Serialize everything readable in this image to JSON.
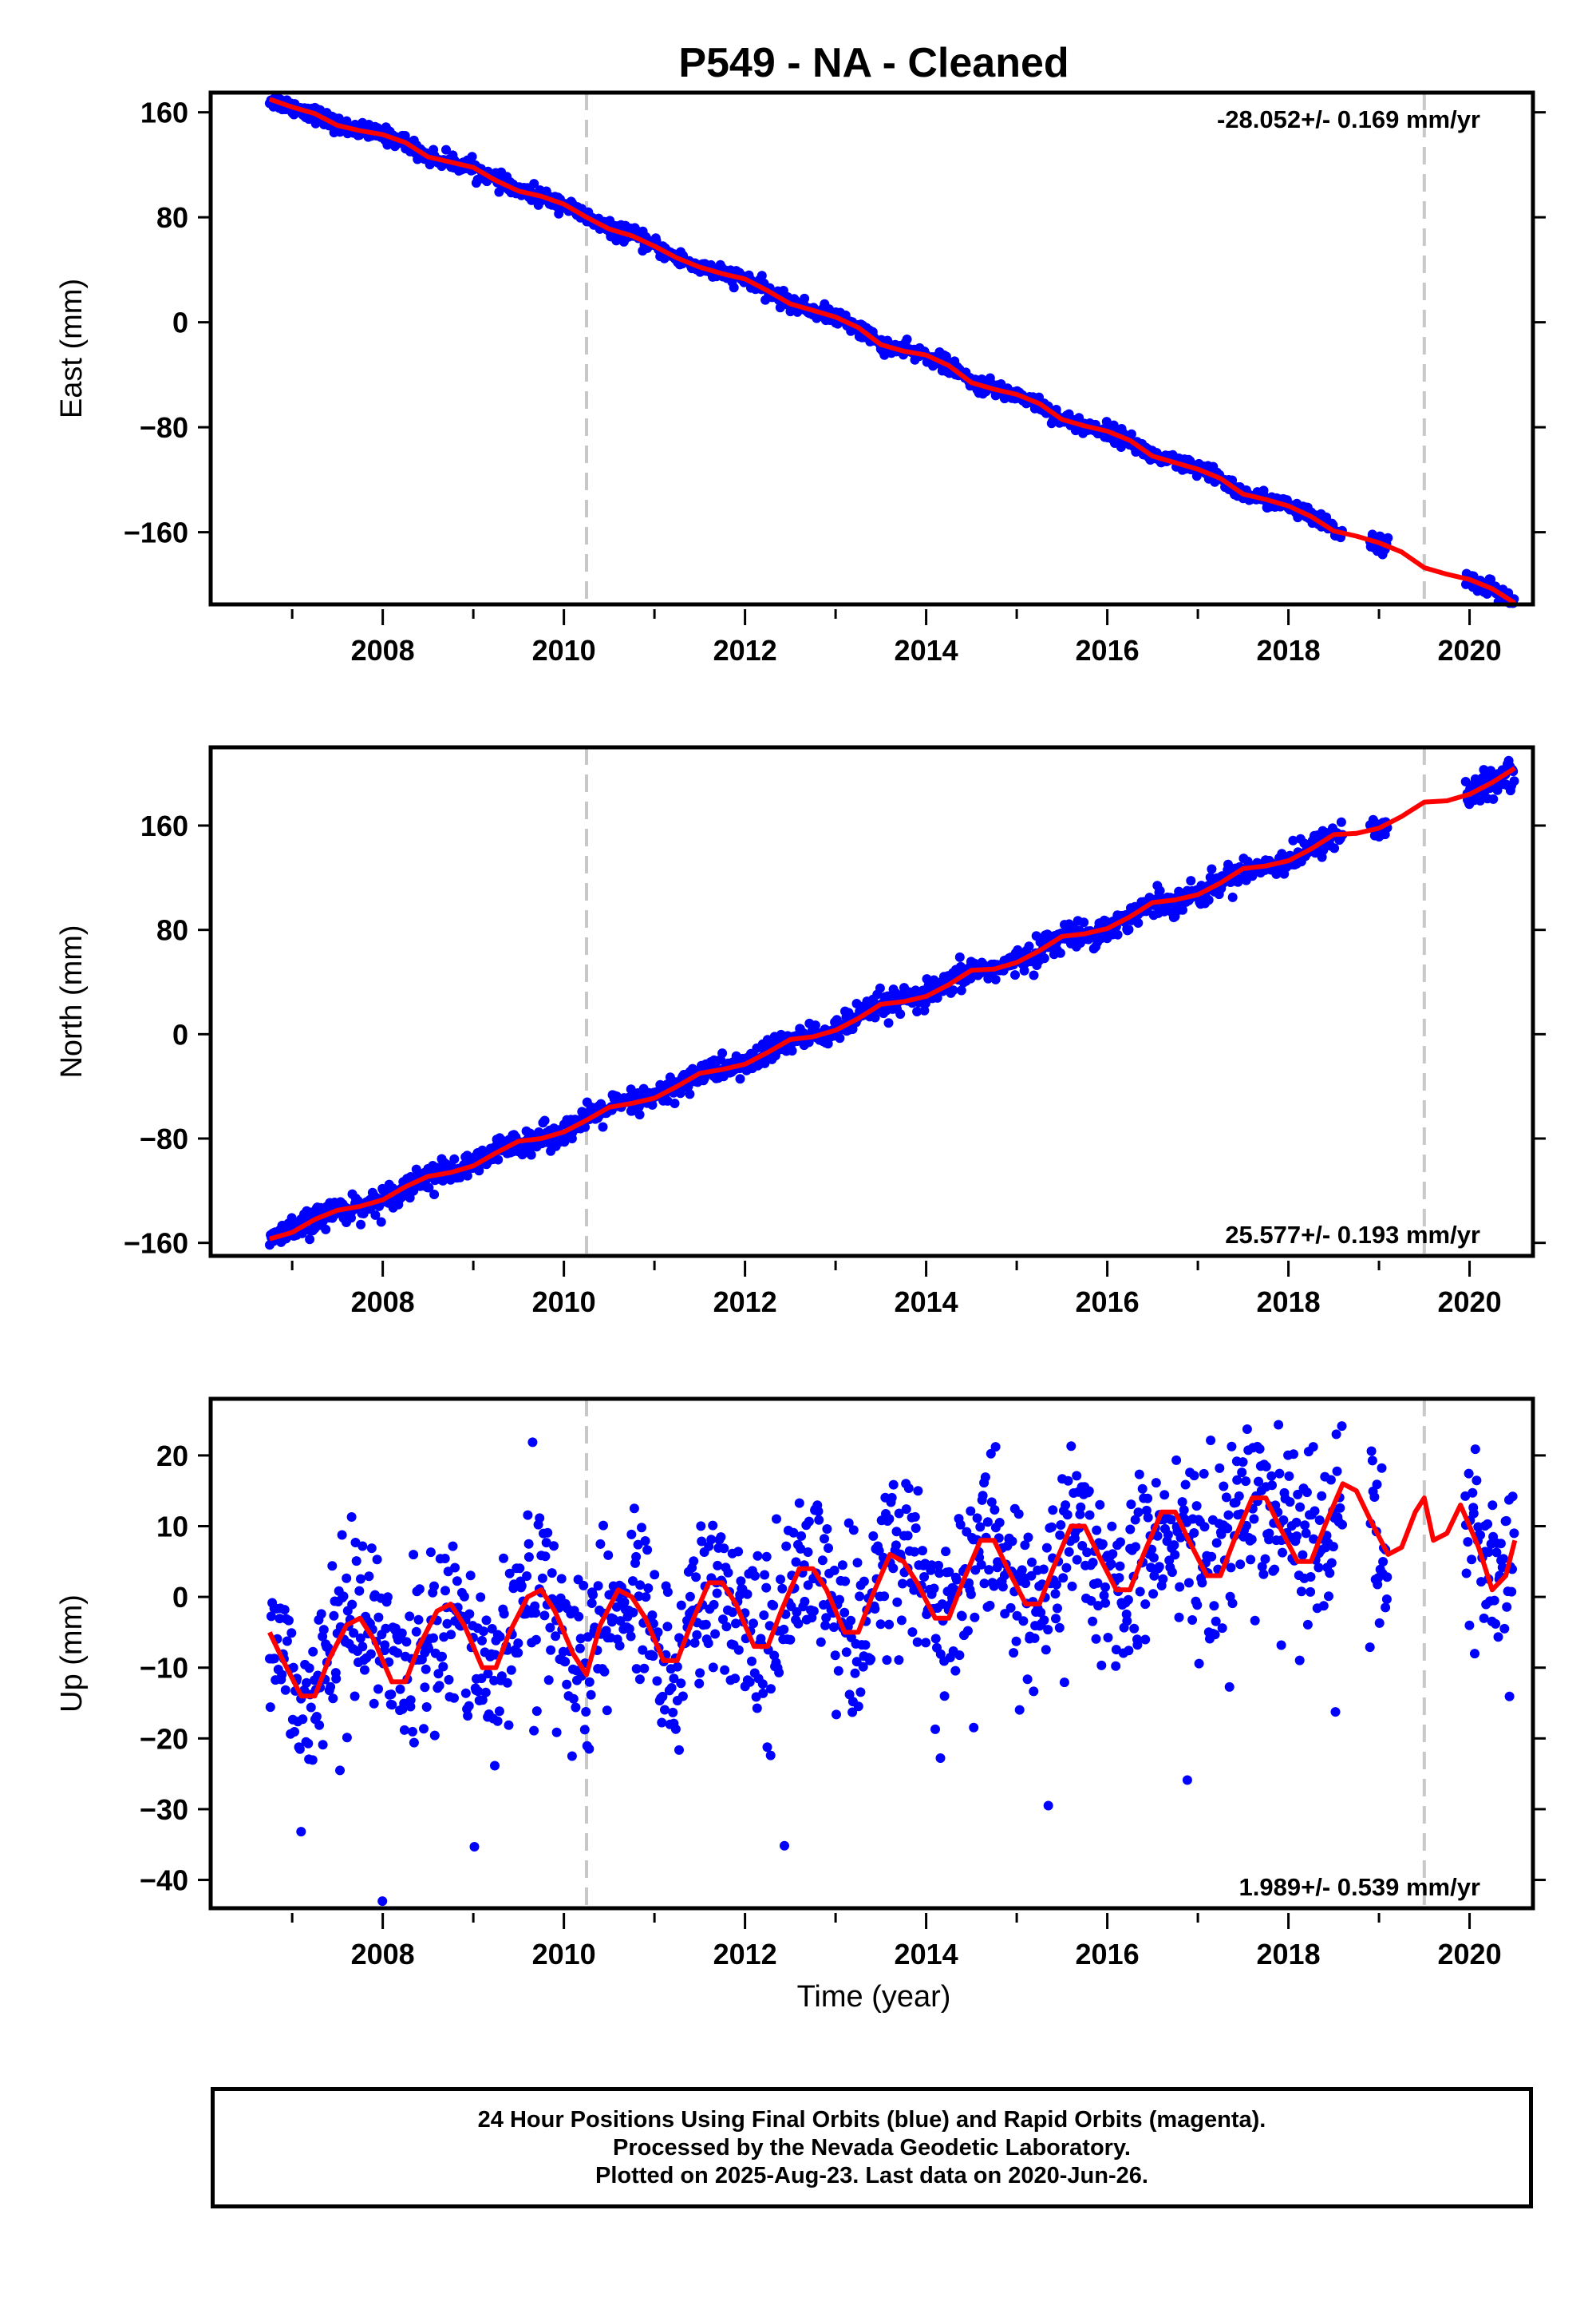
{
  "title": "P549  - NA - Cleaned",
  "xlabel": "Time (year)",
  "colors": {
    "data": "#0000ff",
    "model": "#ff0000",
    "steps": "#c8c8c8"
  },
  "caption": {
    "line1": "24 Hour Positions Using Final Orbits (blue) and Rapid Orbits (magenta).",
    "line2": "Processed by the Nevada Geodetic Laboratory.",
    "line3": "Plotted on 2025-Aug-23. Last data on 2020-Jun-26."
  },
  "chart_data": [
    {
      "type": "scatter",
      "component": "east",
      "ylabel": "East (mm)",
      "rate_label": "-28.052+/- 0.169 mm/yr",
      "rate_position": "top-right",
      "xlim": [
        2006.1,
        2020.7
      ],
      "ylim": [
        -215,
        175
      ],
      "yticks": [
        -160,
        -80,
        0,
        80,
        160
      ],
      "xticks": [
        2008,
        2010,
        2012,
        2014,
        2016,
        2018,
        2020
      ],
      "step_lines_x": [
        2010.25,
        2019.5
      ],
      "model_x": [
        2006.75,
        2007.0,
        2007.25,
        2007.5,
        2007.75,
        2008.0,
        2008.25,
        2008.5,
        2008.75,
        2009.0,
        2009.25,
        2009.5,
        2009.75,
        2010.0,
        2010.25,
        2010.5,
        2010.75,
        2011.0,
        2011.25,
        2011.5,
        2011.75,
        2012.0,
        2012.25,
        2012.5,
        2012.75,
        2013.0,
        2013.25,
        2013.5,
        2013.75,
        2014.0,
        2014.25,
        2014.5,
        2014.75,
        2015.0,
        2015.25,
        2015.5,
        2015.75,
        2016.0,
        2016.25,
        2016.5,
        2016.75,
        2017.0,
        2017.25,
        2017.5,
        2017.75,
        2018.0,
        2018.25,
        2018.5,
        2018.75,
        2019.0,
        2019.25,
        2019.5,
        2019.75,
        2020.0,
        2020.25,
        2020.5
      ],
      "model_y": [
        170,
        164,
        159,
        150,
        146,
        143,
        137,
        126,
        122,
        118,
        108,
        100,
        96,
        90,
        80,
        71,
        66,
        58,
        49,
        42,
        37,
        33,
        24,
        14,
        9,
        4,
        -4,
        -17,
        -22,
        -25,
        -33,
        -46,
        -51,
        -55,
        -62,
        -74,
        -79,
        -83,
        -90,
        -102,
        -107,
        -112,
        -119,
        -131,
        -135,
        -140,
        -148,
        -159,
        -163,
        -168,
        -175,
        -187,
        -192,
        -196,
        -203,
        -214
      ],
      "series_scatter_band": 3
    },
    {
      "type": "scatter",
      "component": "north",
      "ylabel": "North (mm)",
      "rate_label": "25.577+/- 0.193 mm/yr",
      "rate_position": "bottom-right",
      "xlim": [
        2006.1,
        2020.7
      ],
      "ylim": [
        -170,
        220
      ],
      "yticks": [
        -160,
        -80,
        0,
        80,
        160
      ],
      "xticks": [
        2008,
        2010,
        2012,
        2014,
        2016,
        2018,
        2020
      ],
      "step_lines_x": [
        2010.25,
        2019.5
      ],
      "model_x": [
        2006.75,
        2007.0,
        2007.25,
        2007.5,
        2007.75,
        2008.0,
        2008.25,
        2008.5,
        2008.75,
        2009.0,
        2009.25,
        2009.5,
        2009.75,
        2010.0,
        2010.25,
        2010.5,
        2010.75,
        2011.0,
        2011.25,
        2011.5,
        2011.75,
        2012.0,
        2012.25,
        2012.5,
        2012.75,
        2013.0,
        2013.25,
        2013.5,
        2013.75,
        2014.0,
        2014.25,
        2014.5,
        2014.75,
        2015.0,
        2015.25,
        2015.5,
        2015.75,
        2016.0,
        2016.25,
        2016.5,
        2016.75,
        2017.0,
        2017.25,
        2017.5,
        2017.75,
        2018.0,
        2018.25,
        2018.5,
        2018.75,
        2019.0,
        2019.25,
        2019.5,
        2019.75,
        2020.0,
        2020.25,
        2020.5
      ],
      "model_y": [
        -157,
        -152,
        -142,
        -135,
        -132,
        -127,
        -117,
        -109,
        -106,
        -101,
        -91,
        -82,
        -80,
        -75,
        -66,
        -56,
        -53,
        -49,
        -40,
        -30,
        -27,
        -23,
        -14,
        -4,
        -2,
        3,
        12,
        23,
        25,
        29,
        38,
        49,
        50,
        55,
        64,
        75,
        77,
        81,
        90,
        101,
        103,
        107,
        116,
        127,
        129,
        133,
        142,
        153,
        154,
        158,
        167,
        178,
        179,
        184,
        193,
        204
      ],
      "series_scatter_band": 5
    },
    {
      "type": "scatter",
      "component": "up",
      "ylabel": "Up (mm)",
      "rate_label": "1.989+/- 0.539 mm/yr",
      "rate_position": "bottom-right",
      "xlim": [
        2006.1,
        2020.7
      ],
      "ylim": [
        -44,
        28
      ],
      "yticks": [
        -40,
        -30,
        -20,
        -10,
        0,
        10,
        20
      ],
      "xticks": [
        2008,
        2010,
        2012,
        2014,
        2016,
        2018,
        2020
      ],
      "step_lines_x": [
        2010.25,
        2019.5
      ],
      "model_x": [
        2006.75,
        2006.9,
        2007.1,
        2007.25,
        2007.4,
        2007.6,
        2007.75,
        2007.9,
        2008.1,
        2008.25,
        2008.4,
        2008.6,
        2008.75,
        2008.9,
        2009.1,
        2009.25,
        2009.4,
        2009.6,
        2009.75,
        2009.9,
        2010.1,
        2010.25,
        2010.4,
        2010.6,
        2010.75,
        2010.9,
        2011.1,
        2011.25,
        2011.4,
        2011.6,
        2011.75,
        2011.9,
        2012.1,
        2012.25,
        2012.4,
        2012.6,
        2012.75,
        2012.9,
        2013.1,
        2013.25,
        2013.4,
        2013.6,
        2013.75,
        2013.9,
        2014.1,
        2014.25,
        2014.4,
        2014.6,
        2014.75,
        2014.9,
        2015.1,
        2015.25,
        2015.4,
        2015.6,
        2015.75,
        2015.9,
        2016.1,
        2016.25,
        2016.4,
        2016.6,
        2016.75,
        2016.9,
        2017.1,
        2017.25,
        2017.4,
        2017.6,
        2017.75,
        2017.9,
        2018.1,
        2018.25,
        2018.4,
        2018.6,
        2018.75,
        2018.9,
        2019.1,
        2019.25,
        2019.4,
        2019.5,
        2019.6,
        2019.75,
        2019.9,
        2020.1,
        2020.25,
        2020.4,
        2020.5
      ],
      "model_y": [
        -5,
        -9,
        -14,
        -14,
        -9,
        -4,
        -3,
        -6,
        -12,
        -12,
        -7,
        -2,
        -1,
        -4,
        -10,
        -10,
        -5,
        0,
        1,
        -2,
        -8,
        -11,
        -4,
        1,
        0,
        -3,
        -9,
        -9,
        -4,
        2,
        2,
        -1,
        -7,
        -7,
        -2,
        4,
        4,
        1,
        -5,
        -5,
        0,
        6,
        5,
        2,
        -3,
        -3,
        2,
        8,
        8,
        4,
        -1,
        -1,
        4,
        10,
        10,
        6,
        1,
        1,
        6,
        12,
        12,
        8,
        3,
        3,
        8,
        14,
        14,
        10,
        5,
        5,
        10,
        16,
        15,
        11,
        6,
        7,
        12,
        14,
        8,
        9,
        13,
        7,
        1,
        3,
        8
      ],
      "series_scatter_band": 6
    }
  ]
}
